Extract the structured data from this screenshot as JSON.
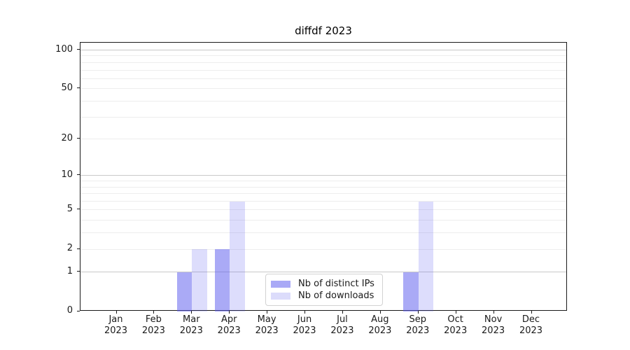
{
  "chart_data": {
    "type": "bar",
    "title": "diffdf 2023",
    "year_label": "2023",
    "categories": [
      "Jan",
      "Feb",
      "Mar",
      "Apr",
      "May",
      "Jun",
      "Jul",
      "Aug",
      "Sep",
      "Oct",
      "Nov",
      "Dec"
    ],
    "series": [
      {
        "name": "Nb of distinct IPs",
        "values": [
          0,
          0,
          1,
          2,
          0,
          0,
          0,
          0,
          1,
          0,
          0,
          0
        ],
        "color_base": "#5555ee",
        "alpha": 0.5,
        "legend_swatch": "#a9a9f6"
      },
      {
        "name": "Nb of downloads",
        "values": [
          0,
          0,
          2,
          6,
          0,
          0,
          0,
          0,
          6,
          0,
          0,
          0
        ],
        "color_base": "#5555ee",
        "alpha": 0.2,
        "legend_swatch": "#dcdcfb"
      }
    ],
    "scale": "log1p",
    "ylim": [
      0,
      114
    ],
    "y_ticks": [
      0,
      1,
      2,
      5,
      10,
      20,
      50,
      100
    ],
    "grid_major_values": [
      1,
      10,
      100
    ],
    "grid_minor_values": [
      2,
      3,
      4,
      5,
      6,
      7,
      8,
      9,
      20,
      30,
      40,
      50,
      60,
      70,
      80,
      90
    ],
    "grid_major_color": "#c9c9c9",
    "grid_minor_color": "#ededed",
    "xlabel": "",
    "ylabel": "",
    "legend_position": "lower center-right"
  }
}
